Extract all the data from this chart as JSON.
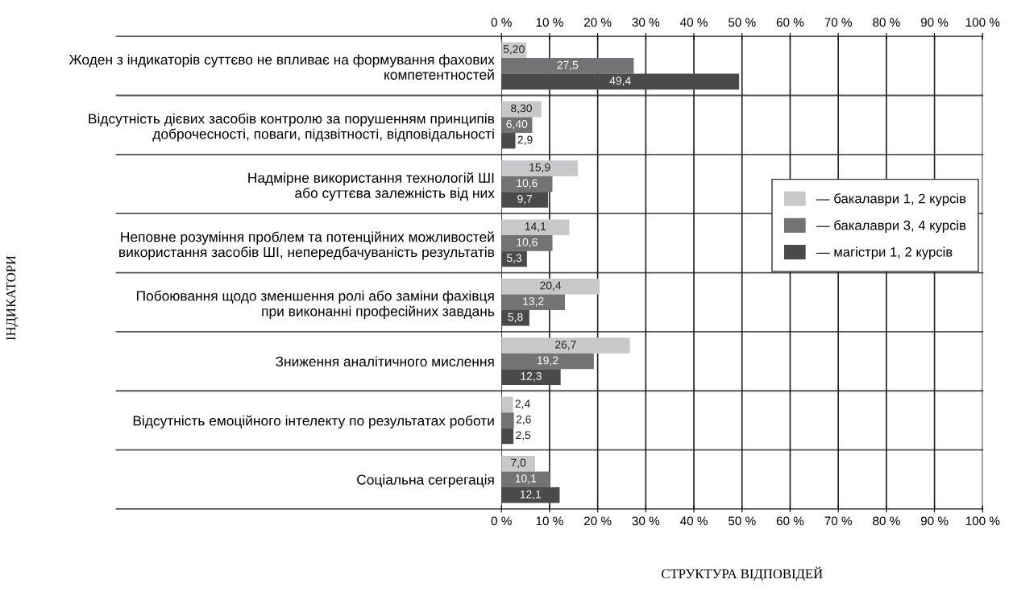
{
  "chart_data": {
    "type": "bar",
    "orientation": "horizontal",
    "categories": [
      "Жоден з індикаторів суттєво не впливає на формування фахових\nкомпетентностей",
      "Відсутність дієвих засобів контролю за порушенням принципів\nдоброчесності, поваги, підзвітності, відповідальності",
      "Надмірне використання технологій ШІ\nабо суттєва залежність від них",
      "Неповне розуміння проблем та потенційних можливостей\nвикористання засобів ШІ, непередбачуваність результатів",
      "Побоювання щодо зменшення ролі або заміни фахівця\nпри виконанні професійних завдань",
      "Зниження аналітичного мислення",
      "Відсутність емоційного інтелекту по результатах роботи",
      "Соціальна сегрегація"
    ],
    "series": [
      {
        "name": "— бакалаври 1, 2 курсів",
        "color": "#c8c8ca",
        "values": [
          5.2,
          8.3,
          15.9,
          14.1,
          20.4,
          26.7,
          2.4,
          7.0
        ],
        "value_labels": [
          "5,20",
          "8,30",
          "15,9",
          "14,1",
          "20,4",
          "26,7",
          "2,4",
          "7,0"
        ]
      },
      {
        "name": "— бакалаври 3, 4 курсів",
        "color": "#737376",
        "values": [
          27.5,
          6.4,
          10.6,
          10.6,
          13.2,
          19.2,
          2.6,
          10.1
        ],
        "value_labels": [
          "27,5",
          "6,40",
          "10,6",
          "10,6",
          "13,2",
          "19,2",
          "2,6",
          "10,1"
        ]
      },
      {
        "name": "— магістри 1, 2 курсів",
        "color": "#4a4a4c",
        "values": [
          49.4,
          2.9,
          9.7,
          5.3,
          5.8,
          12.3,
          2.5,
          12.1
        ],
        "value_labels": [
          "49,4",
          "2,9",
          "9,7",
          "5,3",
          "5,8",
          "12,3",
          "2,5",
          "12,1"
        ]
      }
    ],
    "xlim": [
      0,
      100
    ],
    "xticks": [
      {
        "value": 0,
        "label": "0 %"
      },
      {
        "value": 10,
        "label": "10 %"
      },
      {
        "value": 20,
        "label": "20 %"
      },
      {
        "value": 30,
        "label": "30 %"
      },
      {
        "value": 40,
        "label": "40 %"
      },
      {
        "value": 50,
        "label": "50 %"
      },
      {
        "value": 60,
        "label": "60 %"
      },
      {
        "value": 70,
        "label": "70 %"
      },
      {
        "value": 80,
        "label": "80 %"
      },
      {
        "value": 90,
        "label": "90 %"
      },
      {
        "value": 100,
        "label": "100 %"
      }
    ],
    "x2lim": [
      0,
      100
    ],
    "x2ticks": [
      {
        "value": 0,
        "label": "0 %"
      },
      {
        "value": 10,
        "label": "10 %"
      },
      {
        "value": 20,
        "label": "20 %"
      },
      {
        "value": 30,
        "label": "30 %"
      },
      {
        "value": 40,
        "label": "40 %"
      },
      {
        "value": 50,
        "label": "50 %"
      },
      {
        "value": 60,
        "label": "60 %"
      },
      {
        "value": 70,
        "label": "70 %"
      },
      {
        "value": 80,
        "label": "80 %"
      },
      {
        "value": 90,
        "label": "90 %"
      },
      {
        "value": 100,
        "label": "100 %"
      }
    ],
    "xlabel": "СТРУКТУРА ВІДПОВІДЕЙ",
    "ylabel": "ІНДИКАТОРИ",
    "grid": "x",
    "legend": "right"
  }
}
